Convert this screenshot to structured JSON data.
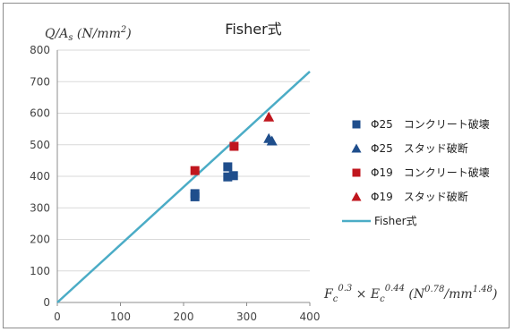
{
  "chart_data": {
    "type": "scatter",
    "title": "Fisher式",
    "ylabel": "Q/A_s (N/mm²)",
    "xlabel": "F_c^0.3 × E_c^0.44 (N^0.78/mm^1.48)",
    "xlim": [
      0,
      400
    ],
    "ylim": [
      0,
      800
    ],
    "x_ticks": [
      "0",
      "100",
      "200",
      "300",
      "400"
    ],
    "y_ticks": [
      "0",
      "100",
      "200",
      "300",
      "400",
      "500",
      "600",
      "700",
      "800"
    ],
    "grid": "horizontal",
    "legend_position": "right",
    "series": [
      {
        "name": "Φ25　コンクリート破壊",
        "marker": "square",
        "color": "#1f4e8c",
        "points": [
          [
            218,
            335
          ],
          [
            218,
            345
          ],
          [
            270,
            430
          ],
          [
            270,
            398
          ],
          [
            279,
            402
          ]
        ]
      },
      {
        "name": "Φ25　スタッド破断",
        "marker": "triangle",
        "color": "#1f4e8c",
        "points": [
          [
            335,
            520
          ],
          [
            340,
            512
          ]
        ]
      },
      {
        "name": "Φ19　コンクリート破壊",
        "marker": "square",
        "color": "#c0161e",
        "points": [
          [
            218,
            418
          ],
          [
            280,
            495
          ]
        ]
      },
      {
        "name": "Φ19　スタッド破断",
        "marker": "triangle",
        "color": "#c0161e",
        "points": [
          [
            335,
            588
          ]
        ]
      },
      {
        "name": "Fisher式",
        "type": "line",
        "color": "#4bacc6",
        "points": [
          [
            0,
            0
          ],
          [
            400,
            732
          ]
        ]
      }
    ]
  }
}
